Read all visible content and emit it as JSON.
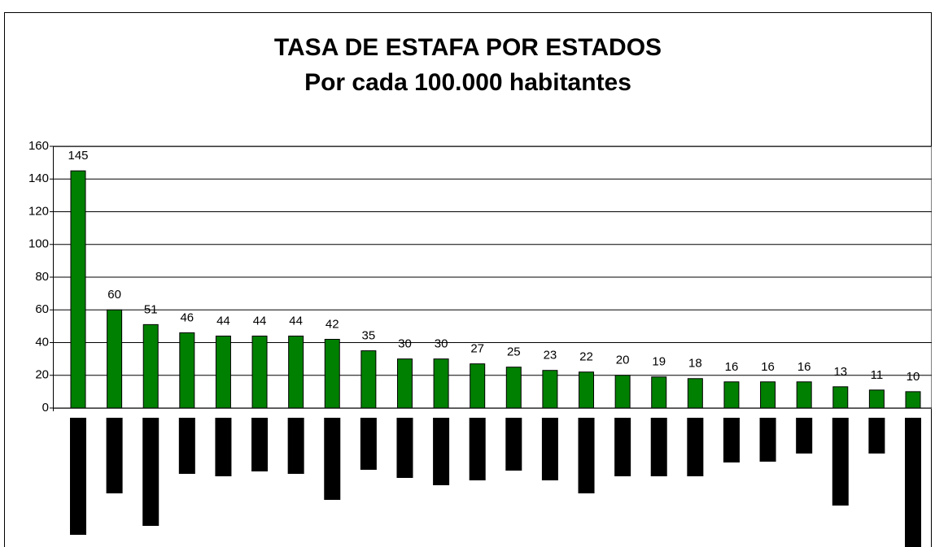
{
  "chart_data": {
    "type": "bar",
    "title": "TASA DE ESTAFA POR ESTADOS",
    "subtitle": "Por cada 100.000 habitantes",
    "categories": [
      null,
      null,
      null,
      null,
      null,
      null,
      null,
      null,
      null,
      null,
      null,
      null,
      null,
      null,
      null,
      null,
      null,
      null,
      null,
      null,
      null,
      null,
      null,
      null
    ],
    "values": [
      145,
      60,
      51,
      46,
      44,
      44,
      44,
      42,
      35,
      30,
      30,
      27,
      25,
      23,
      22,
      20,
      19,
      18,
      16,
      16,
      16,
      13,
      11,
      10
    ],
    "color": "#008000",
    "ylim": [
      0,
      160
    ],
    "yticks": [
      0,
      20,
      40,
      60,
      80,
      100,
      120,
      140,
      160
    ],
    "grid": true
  }
}
